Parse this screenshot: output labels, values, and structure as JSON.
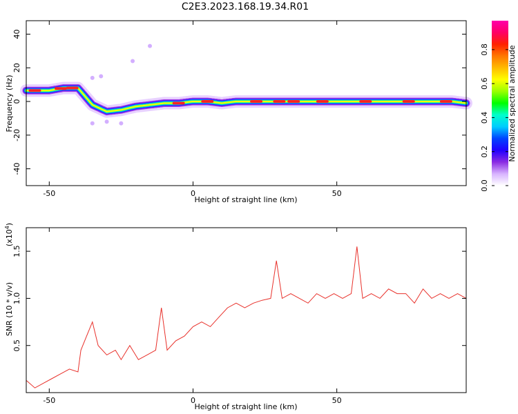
{
  "title": "C2E3.2023.168.19.34.R01",
  "chart_data": [
    {
      "type": "heatmap",
      "xlabel": "Height of straight line (km)",
      "ylabel": "Frequency (Hz)",
      "xlim": [
        -58,
        95
      ],
      "ylim": [
        -50,
        48
      ],
      "xticks": [
        "-50",
        "0",
        "50"
      ],
      "xtick_values": [
        -50,
        0,
        50
      ],
      "yticks": [
        "-40",
        "-20",
        "0",
        "20",
        "40"
      ],
      "ytick_values": [
        -40,
        -20,
        0,
        20,
        40
      ],
      "ridge": [
        {
          "x": -58,
          "y": 6.5
        },
        {
          "x": -50,
          "y": 6.5
        },
        {
          "x": -45,
          "y": 8
        },
        {
          "x": -40,
          "y": 8
        },
        {
          "x": -38,
          "y": 4
        },
        {
          "x": -35,
          "y": -2
        },
        {
          "x": -30,
          "y": -6
        },
        {
          "x": -25,
          "y": -5
        },
        {
          "x": -20,
          "y": -3
        },
        {
          "x": -15,
          "y": -2
        },
        {
          "x": -10,
          "y": -1
        },
        {
          "x": -5,
          "y": -1
        },
        {
          "x": 0,
          "y": 0
        },
        {
          "x": 5,
          "y": 0
        },
        {
          "x": 10,
          "y": -1
        },
        {
          "x": 15,
          "y": 0
        },
        {
          "x": 20,
          "y": 0
        },
        {
          "x": 30,
          "y": 0
        },
        {
          "x": 40,
          "y": 0
        },
        {
          "x": 50,
          "y": 0
        },
        {
          "x": 60,
          "y": 0
        },
        {
          "x": 70,
          "y": 0
        },
        {
          "x": 80,
          "y": 0
        },
        {
          "x": 90,
          "y": 0
        },
        {
          "x": 95,
          "y": -1
        }
      ],
      "stray_points": [
        {
          "x": -15,
          "y": 33
        },
        {
          "x": -21,
          "y": 24
        },
        {
          "x": -32,
          "y": 15
        },
        {
          "x": -35,
          "y": 14
        },
        {
          "x": -35,
          "y": -13
        },
        {
          "x": -30,
          "y": -12
        },
        {
          "x": -25,
          "y": -13
        }
      ],
      "colorbar": {
        "label": "Normalized spectral amplitude",
        "range": [
          0,
          0.97
        ],
        "ticks": [
          "0.0",
          "0.2",
          "0.4",
          "0.6",
          "0.8"
        ],
        "tick_values": [
          0,
          0.2,
          0.4,
          0.6,
          0.8
        ],
        "colors": [
          "#ffffff",
          "#d8b4ff",
          "#8a2be2",
          "#2200ff",
          "#0044ff",
          "#00ccff",
          "#00ffcc",
          "#00ff00",
          "#99ff00",
          "#ffff00",
          "#ffbb00",
          "#ff7700",
          "#ff2200",
          "#ff0066",
          "#ff00aa"
        ]
      }
    },
    {
      "type": "line",
      "xlabel": "Height of straight line (km)",
      "ylabel": "SNR (10 * v/v)",
      "y_scale_label": "(x10",
      "y_scale_exponent": "4",
      "y_scale_close": ")",
      "xlim": [
        -58,
        95
      ],
      "ylim": [
        0,
        1.75
      ],
      "xticks": [
        "-50",
        "0",
        "50"
      ],
      "xtick_values": [
        -50,
        0,
        50
      ],
      "yticks": [
        "0.5",
        "1.0",
        "1.5"
      ],
      "ytick_values": [
        0.5,
        1.0,
        1.5
      ],
      "line_color": "#e8302a",
      "series": [
        {
          "x": [
            -58,
            -55,
            -52,
            -49,
            -46,
            -43,
            -40,
            -39,
            -37,
            -35,
            -33,
            -30,
            -27,
            -25,
            -22,
            -19,
            -16,
            -13,
            -11,
            -9,
            -6,
            -3,
            0,
            3,
            6,
            9,
            12,
            15,
            18,
            21,
            24,
            27,
            29,
            31,
            34,
            37,
            40,
            43,
            46,
            49,
            52,
            55,
            57,
            59,
            62,
            65,
            68,
            71,
            74,
            77,
            80,
            83,
            86,
            89,
            92,
            95
          ],
          "values": [
            0.13,
            0.05,
            0.1,
            0.15,
            0.2,
            0.25,
            0.22,
            0.45,
            0.6,
            0.75,
            0.5,
            0.4,
            0.45,
            0.35,
            0.5,
            0.35,
            0.4,
            0.45,
            0.9,
            0.45,
            0.55,
            0.6,
            0.7,
            0.75,
            0.7,
            0.8,
            0.9,
            0.95,
            0.9,
            0.95,
            0.98,
            1.0,
            1.4,
            1.0,
            1.05,
            1.0,
            0.95,
            1.05,
            1.0,
            1.05,
            1.0,
            1.05,
            1.55,
            1.0,
            1.05,
            1.0,
            1.1,
            1.05,
            1.05,
            0.95,
            1.1,
            1.0,
            1.05,
            1.0,
            1.05,
            1.0
          ]
        }
      ]
    }
  ]
}
